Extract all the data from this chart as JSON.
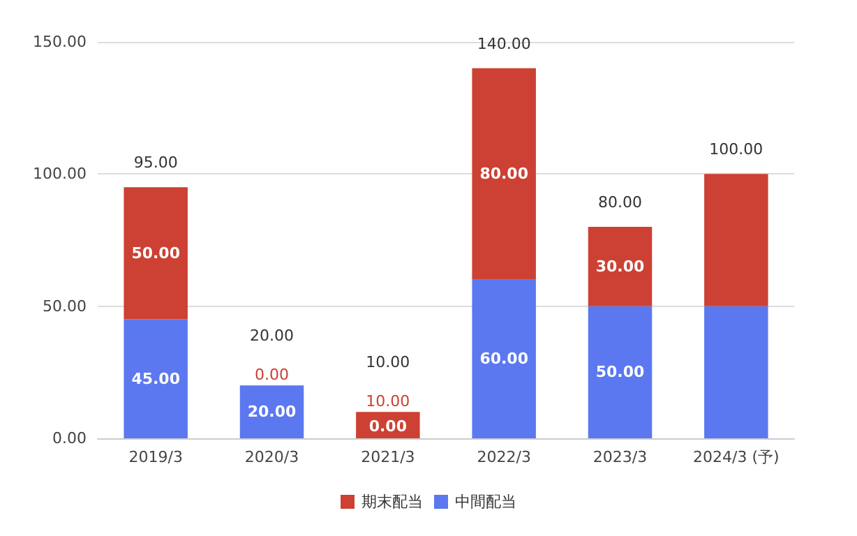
{
  "chart_data": {
    "type": "bar",
    "stacked": true,
    "categories": [
      "2019/3",
      "2020/3",
      "2021/3",
      "2022/3",
      "2023/3",
      "2024/3 (予)"
    ],
    "series": [
      {
        "name": "中間配当",
        "color": "#5b78f0",
        "values": [
          45,
          20,
          0,
          60,
          50,
          50
        ],
        "value_labels": [
          "45.00",
          "20.00",
          "0.00",
          "60.00",
          "50.00",
          null
        ]
      },
      {
        "name": "期末配当",
        "color": "#cc4133",
        "values": [
          50,
          0,
          10,
          80,
          30,
          50
        ],
        "value_labels": [
          "50.00",
          "0.00",
          "10.00",
          "80.00",
          "30.00",
          null
        ]
      }
    ],
    "totals": [
      "95.00",
      "20.00",
      "10.00",
      "140.00",
      "80.00",
      "100.00"
    ],
    "ylim": [
      0,
      150
    ],
    "yticks": [
      {
        "value": 0,
        "label": "0.00"
      },
      {
        "value": 50,
        "label": "50.00"
      },
      {
        "value": 100,
        "label": "100.00"
      },
      {
        "value": 150,
        "label": "150.00"
      }
    ],
    "grid": "y",
    "legend": "bottom"
  }
}
